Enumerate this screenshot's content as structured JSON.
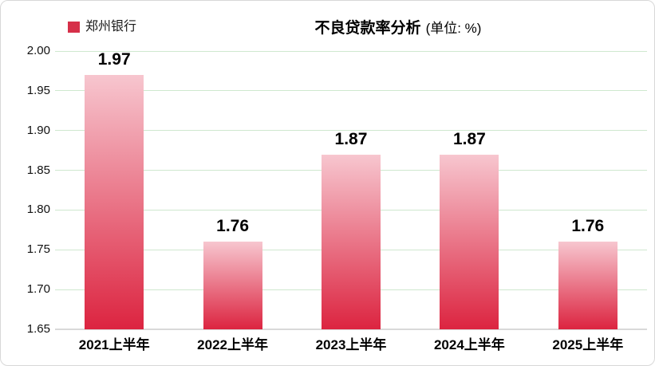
{
  "legend": {
    "label": "郑州银行",
    "marker_color": "#d63049"
  },
  "title": {
    "main": "不良贷款率分析",
    "unit": "(单位: %)"
  },
  "chart_data": {
    "type": "bar",
    "title": "不良贷款率分析 (单位: %)",
    "categories": [
      "2021上半年",
      "2022上半年",
      "2023上半年",
      "2024上半年",
      "2025上半年"
    ],
    "series": [
      {
        "name": "郑州银行",
        "values": [
          1.97,
          1.76,
          1.87,
          1.87,
          1.76
        ]
      }
    ],
    "value_labels": [
      "1.97",
      "1.76",
      "1.87",
      "1.87",
      "1.76"
    ],
    "xlabel": "",
    "ylabel": "",
    "ylim": [
      1.65,
      2.0
    ],
    "ytick_step": 0.05,
    "yticks": [
      "2.00",
      "1.95",
      "1.90",
      "1.85",
      "1.80",
      "1.75",
      "1.70",
      "1.65"
    ],
    "grid": true,
    "legend_position": "top-left",
    "colors": {
      "bar_gradient_top": "#f7c6cf",
      "bar_gradient_bottom": "#dc2440",
      "gridline": "#cfe8cf",
      "axis_line": "#d9d9d9",
      "label_text": "#000000"
    }
  }
}
